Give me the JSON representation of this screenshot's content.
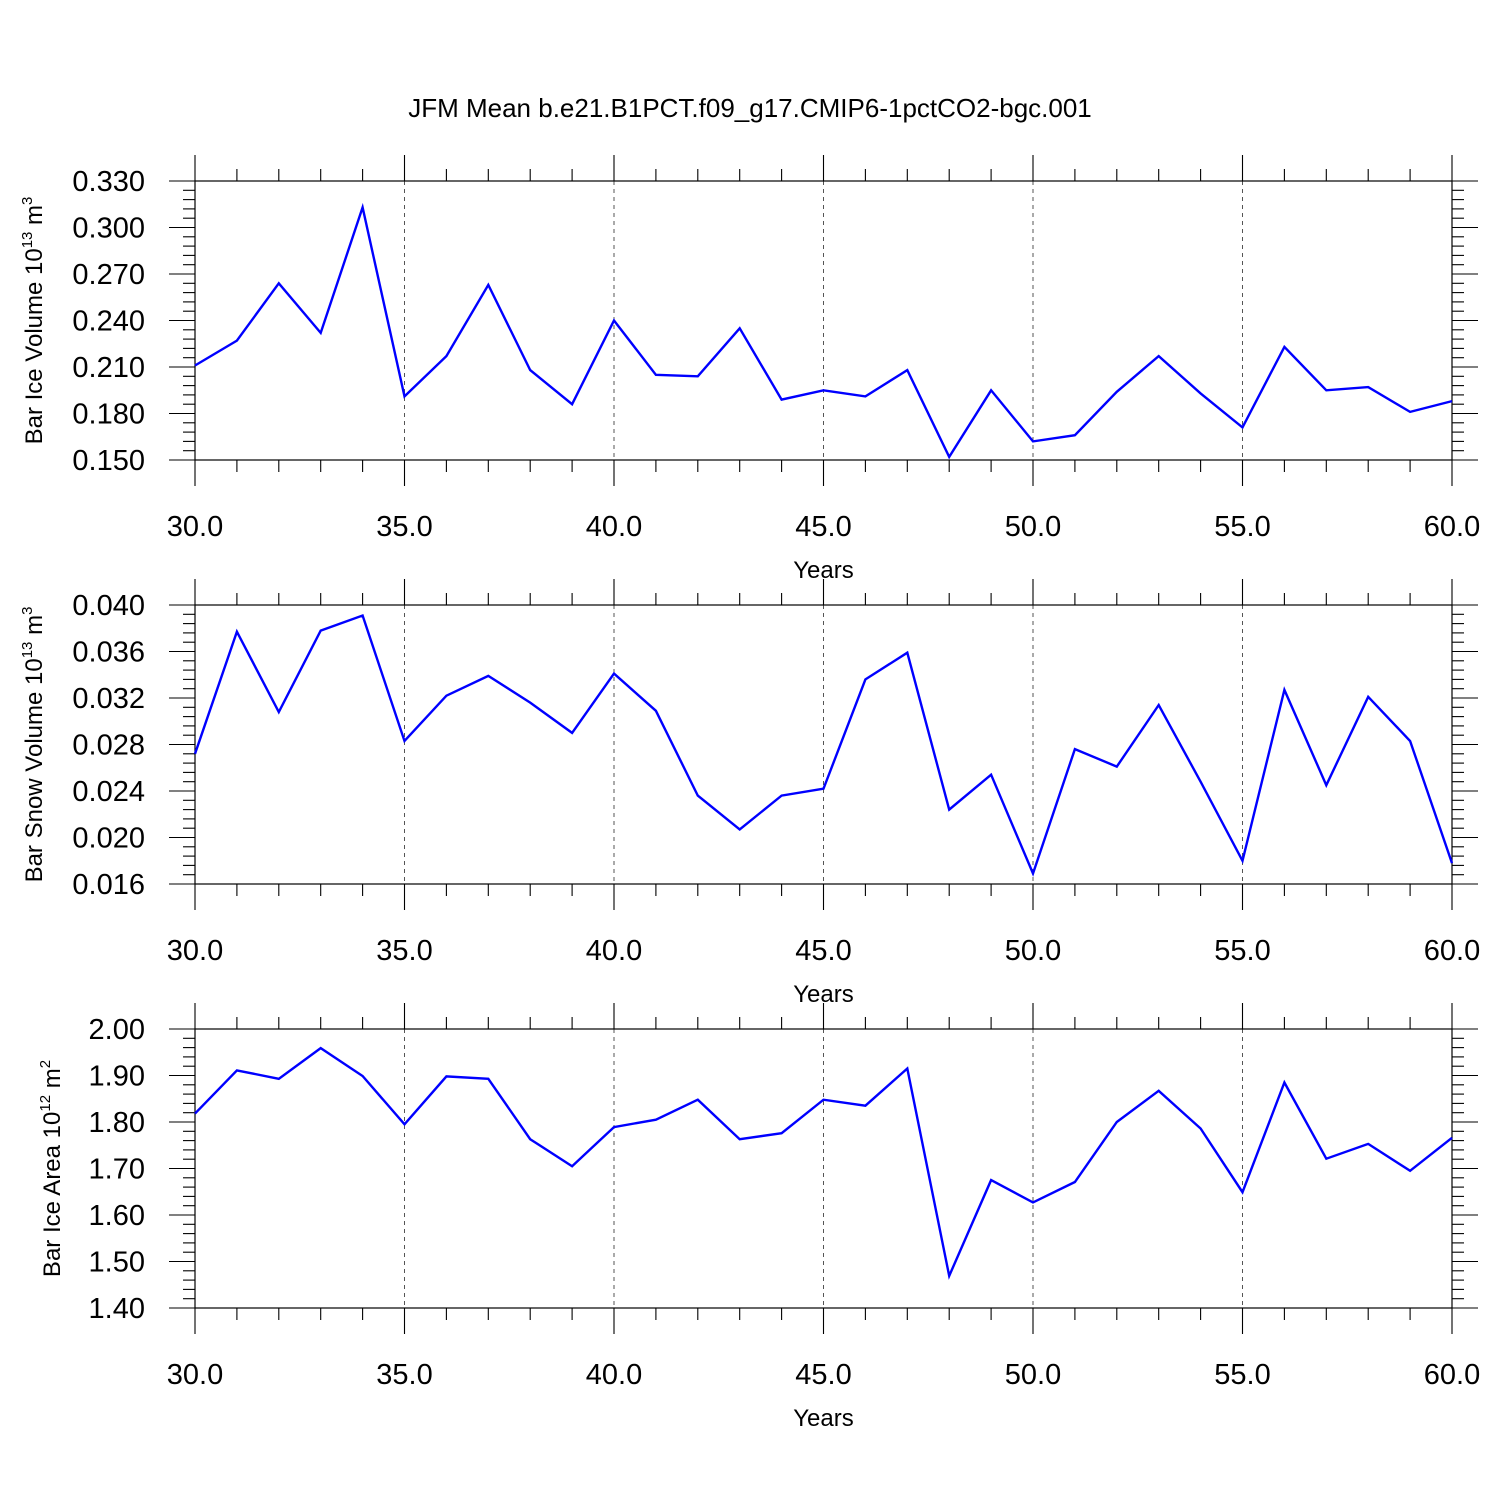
{
  "figure": {
    "title": "JFM Mean b.e21.B1PCT.f09_g17.CMIP6-1pctCO2-bgc.001"
  },
  "chart_data": [
    {
      "type": "line",
      "xlabel": "Years",
      "ylabel_main": "Bar Ice Volume 10",
      "ylabel_exp": "13",
      "ylabel_unit": " m",
      "ylabel_unit_exp": "3",
      "xlim": [
        30,
        60
      ],
      "ylim": [
        0.15,
        0.33
      ],
      "x_ticks": [
        30,
        35,
        40,
        45,
        50,
        55,
        60
      ],
      "x_tick_labels": [
        "30.0",
        "35.0",
        "40.0",
        "45.0",
        "50.0",
        "55.0",
        "60.0"
      ],
      "y_ticks": [
        0.15,
        0.18,
        0.21,
        0.24,
        0.27,
        0.3,
        0.33
      ],
      "y_tick_labels": [
        "0.150",
        "0.180",
        "0.210",
        "0.240",
        "0.270",
        "0.300",
        "0.330"
      ],
      "y_minor_step": 0.006,
      "grid": "dashed vertical at major x ticks",
      "color": "#0000ff",
      "x": [
        30,
        31,
        32,
        33,
        34,
        35,
        36,
        37,
        38,
        39,
        40,
        41,
        42,
        43,
        44,
        45,
        46,
        47,
        48,
        49,
        50,
        51,
        52,
        53,
        54,
        55,
        56,
        57,
        58,
        59,
        60
      ],
      "values": [
        0.211,
        0.227,
        0.264,
        0.232,
        0.313,
        0.191,
        0.217,
        0.263,
        0.208,
        0.186,
        0.24,
        0.205,
        0.204,
        0.235,
        0.189,
        0.195,
        0.191,
        0.208,
        0.152,
        0.195,
        0.162,
        0.166,
        0.194,
        0.217,
        0.193,
        0.171,
        0.223,
        0.195,
        0.197,
        0.181,
        0.188
      ]
    },
    {
      "type": "line",
      "xlabel": "Years",
      "ylabel_main": "Bar Snow Volume 10",
      "ylabel_exp": "13",
      "ylabel_unit": " m",
      "ylabel_unit_exp": "3",
      "xlim": [
        30,
        60
      ],
      "ylim": [
        0.016,
        0.04
      ],
      "x_ticks": [
        30,
        35,
        40,
        45,
        50,
        55,
        60
      ],
      "x_tick_labels": [
        "30.0",
        "35.0",
        "40.0",
        "45.0",
        "50.0",
        "55.0",
        "60.0"
      ],
      "y_ticks": [
        0.016,
        0.02,
        0.024,
        0.028,
        0.032,
        0.036,
        0.04
      ],
      "y_tick_labels": [
        "0.016",
        "0.020",
        "0.024",
        "0.028",
        "0.032",
        "0.036",
        "0.040"
      ],
      "y_minor_step": 0.0008,
      "grid": "dashed vertical at major x ticks",
      "color": "#0000ff",
      "x": [
        30,
        31,
        32,
        33,
        34,
        35,
        36,
        37,
        38,
        39,
        40,
        41,
        42,
        43,
        44,
        45,
        46,
        47,
        48,
        49,
        50,
        51,
        52,
        53,
        54,
        55,
        56,
        57,
        58,
        59,
        60
      ],
      "values": [
        0.0272,
        0.0377,
        0.0308,
        0.0378,
        0.0391,
        0.0283,
        0.0322,
        0.0339,
        0.0316,
        0.029,
        0.0341,
        0.0309,
        0.0236,
        0.0207,
        0.0236,
        0.0242,
        0.0336,
        0.0359,
        0.0224,
        0.0254,
        0.0169,
        0.0276,
        0.0261,
        0.0314,
        0.0248,
        0.018,
        0.0327,
        0.0245,
        0.0321,
        0.0283,
        0.0178
      ]
    },
    {
      "type": "line",
      "xlabel": "Years",
      "ylabel_main": "Bar Ice Area 10",
      "ylabel_exp": "12",
      "ylabel_unit": " m",
      "ylabel_unit_exp": "2",
      "xlim": [
        30,
        60
      ],
      "ylim": [
        1.4,
        2.0
      ],
      "x_ticks": [
        30,
        35,
        40,
        45,
        50,
        55,
        60
      ],
      "x_tick_labels": [
        "30.0",
        "35.0",
        "40.0",
        "45.0",
        "50.0",
        "55.0",
        "60.0"
      ],
      "y_ticks": [
        1.4,
        1.5,
        1.6,
        1.7,
        1.8,
        1.9,
        2.0
      ],
      "y_tick_labels": [
        "1.40",
        "1.50",
        "1.60",
        "1.70",
        "1.80",
        "1.90",
        "2.00"
      ],
      "y_minor_step": 0.02,
      "grid": "dashed vertical at major x ticks",
      "color": "#0000ff",
      "x": [
        30,
        31,
        32,
        33,
        34,
        35,
        36,
        37,
        38,
        39,
        40,
        41,
        42,
        43,
        44,
        45,
        46,
        47,
        48,
        49,
        50,
        51,
        52,
        53,
        54,
        55,
        56,
        57,
        58,
        59,
        60
      ],
      "values": [
        1.818,
        1.911,
        1.893,
        1.959,
        1.899,
        1.795,
        1.898,
        1.893,
        1.763,
        1.705,
        1.789,
        1.805,
        1.848,
        1.763,
        1.776,
        1.848,
        1.835,
        1.915,
        1.469,
        1.675,
        1.627,
        1.671,
        1.8,
        1.867,
        1.786,
        1.649,
        1.885,
        1.721,
        1.753,
        1.695,
        1.766
      ]
    }
  ]
}
